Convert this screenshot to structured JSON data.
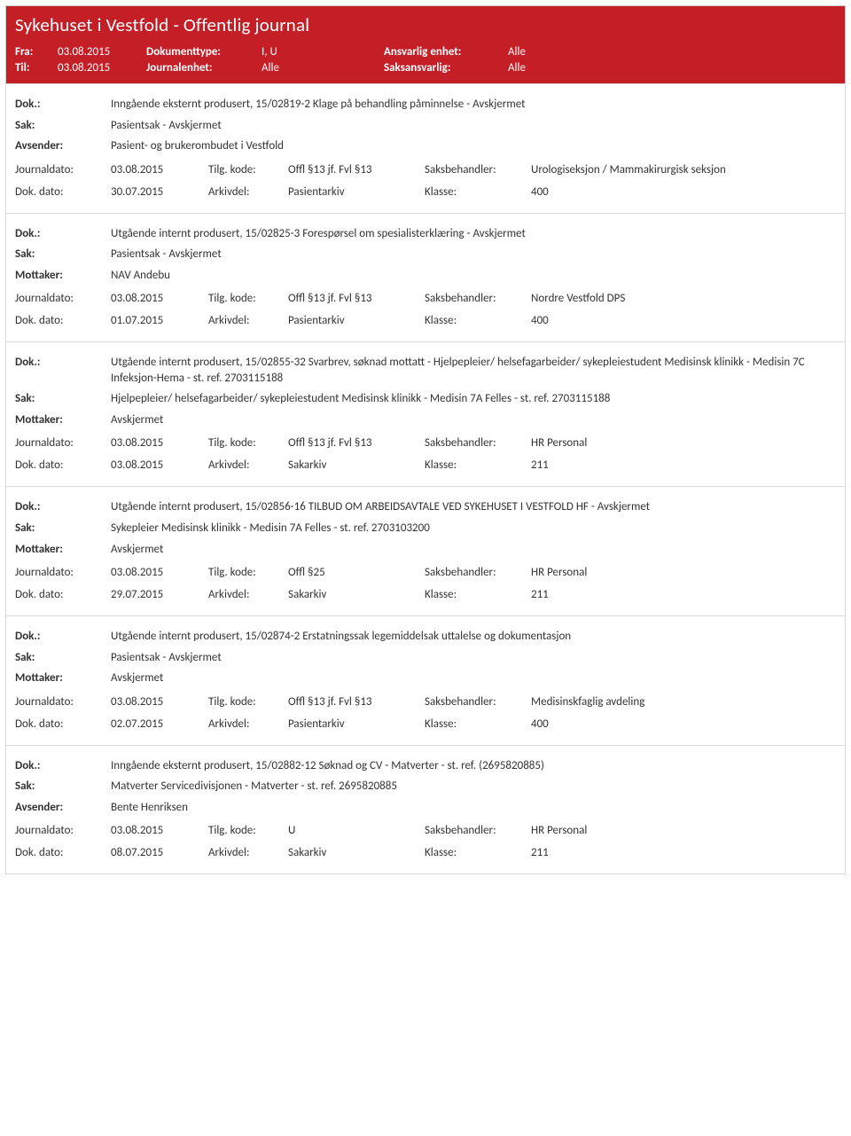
{
  "header": {
    "title": "Sykehuset i Vestfold - Offentlig journal",
    "fraLabel": "Fra:",
    "fraVal": "03.08.2015",
    "tilLabel": "Til:",
    "tilVal": "03.08.2015",
    "doktypeLabel": "Dokumenttype:",
    "doktypeVal": "I, U",
    "jenhetLabel": "Journalenhet:",
    "jenhetVal": "Alle",
    "ansvLabel": "Ansvarlig enhet:",
    "ansvVal": "Alle",
    "saksLabel": "Saksansvarlig:",
    "saksVal": "Alle"
  },
  "labels": {
    "dok": "Dok.:",
    "sak": "Sak:",
    "avsender": "Avsender:",
    "mottaker": "Mottaker:",
    "journaldato": "Journaldato:",
    "dokdato": "Dok. dato:",
    "tilgkode": "Tilg. kode:",
    "arkivdel": "Arkivdel:",
    "saksbeh": "Saksbehandler:",
    "klasse": "Klasse:"
  },
  "entries": [
    {
      "dok": "Inngående eksternt produsert, 15/02819-2 Klage på behandling påminnelse - Avskjermet",
      "sak": "Pasientsak - Avskjermet",
      "partyLabel": "Avsender:",
      "party": "Pasient- og brukerombudet i Vestfold",
      "journaldato": "03.08.2015",
      "tilgkode": "Offl §13 jf. Fvl §13",
      "saksbeh": "Urologiseksjon / Mammakirurgisk seksjon",
      "dokdato": "30.07.2015",
      "arkivdel": "Pasientarkiv",
      "klasse": "400"
    },
    {
      "dok": "Utgående internt produsert, 15/02825-3 Forespørsel om spesialisterklæring - Avskjermet",
      "sak": "Pasientsak - Avskjermet",
      "partyLabel": "Mottaker:",
      "party": "NAV Andebu",
      "journaldato": "03.08.2015",
      "tilgkode": "Offl §13 jf. Fvl §13",
      "saksbeh": "Nordre Vestfold DPS",
      "dokdato": "01.07.2015",
      "arkivdel": "Pasientarkiv",
      "klasse": "400"
    },
    {
      "dok": "Utgående internt produsert, 15/02855-32 Svarbrev, søknad mottatt - Hjelpepleier/ helsefagarbeider/ sykepleiestudent Medisinsk klinikk - Medisin 7C Infeksjon-Hema - st. ref. 2703115188",
      "sak": "Hjelpepleier/ helsefagarbeider/ sykepleiestudent Medisinsk klinikk - Medisin 7A Felles - st. ref. 2703115188",
      "partyLabel": "Mottaker:",
      "party": "Avskjermet",
      "journaldato": "03.08.2015",
      "tilgkode": "Offl §13 jf. Fvl §13",
      "saksbeh": "HR Personal",
      "dokdato": "03.08.2015",
      "arkivdel": "Sakarkiv",
      "klasse": "211"
    },
    {
      "dok": "Utgående internt produsert, 15/02856-16 TILBUD OM ARBEIDSAVTALE VED SYKEHUSET I VESTFOLD HF - Avskjermet",
      "sak": "Sykepleier Medisinsk klinikk - Medisin 7A Felles - st. ref. 2703103200",
      "partyLabel": "Mottaker:",
      "party": "Avskjermet",
      "journaldato": "03.08.2015",
      "tilgkode": "Offl §25",
      "saksbeh": "HR Personal",
      "dokdato": "29.07.2015",
      "arkivdel": "Sakarkiv",
      "klasse": "211"
    },
    {
      "dok": "Utgående internt produsert, 15/02874-2 Erstatningssak legemiddelsak uttalelse og dokumentasjon",
      "sak": "Pasientsak - Avskjermet",
      "partyLabel": "Mottaker:",
      "party": "Avskjermet",
      "journaldato": "03.08.2015",
      "tilgkode": "Offl §13 jf. Fvl §13",
      "saksbeh": "Medisinskfaglig avdeling",
      "dokdato": "02.07.2015",
      "arkivdel": "Pasientarkiv",
      "klasse": "400"
    },
    {
      "dok": "Inngående eksternt produsert, 15/02882-12 Søknad og CV - Matverter - st. ref. (2695820885)",
      "sak": "Matverter Servicedivisjonen - Matverter - st. ref. 2695820885",
      "partyLabel": "Avsender:",
      "party": "Bente Henriksen",
      "journaldato": "03.08.2015",
      "tilgkode": "U",
      "saksbeh": "HR Personal",
      "dokdato": "08.07.2015",
      "arkivdel": "Sakarkiv",
      "klasse": "211"
    }
  ]
}
